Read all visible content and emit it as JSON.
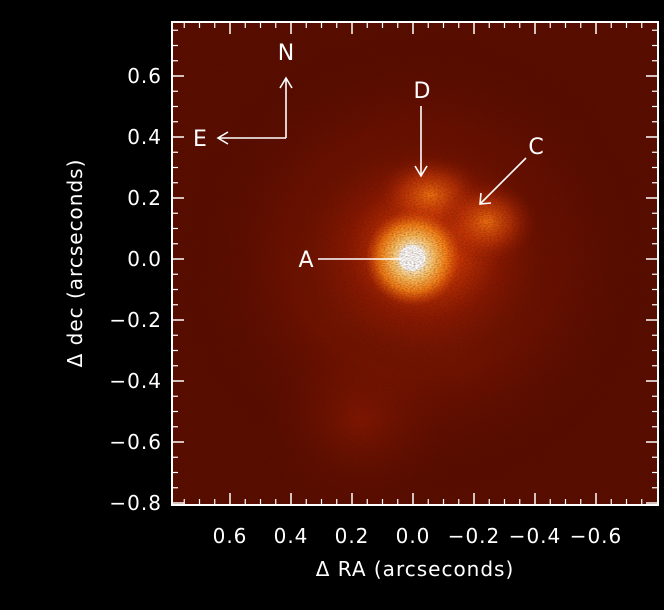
{
  "figure": {
    "x_axis_label": "Δ RA (arcseconds)",
    "y_axis_label": "Δ dec (arcseconds)",
    "x_tick_labels": [
      "0.6",
      "0.4",
      "0.2",
      "0.0",
      "−0.2",
      "−0.4",
      "−0.6"
    ],
    "y_tick_labels": [
      "0.6",
      "0.4",
      "0.2",
      "0.0",
      "−0.2",
      "−0.4",
      "−0.6",
      "−0.8"
    ],
    "compass": {
      "north": "N",
      "east": "E"
    },
    "labels": {
      "a": "A",
      "c": "C",
      "d": "D"
    },
    "colors": {
      "background": "#000000",
      "frame": "#ffffff",
      "text": "#ffffff",
      "glow": "#ffb640",
      "deep_red": "#3a0500"
    }
  }
}
